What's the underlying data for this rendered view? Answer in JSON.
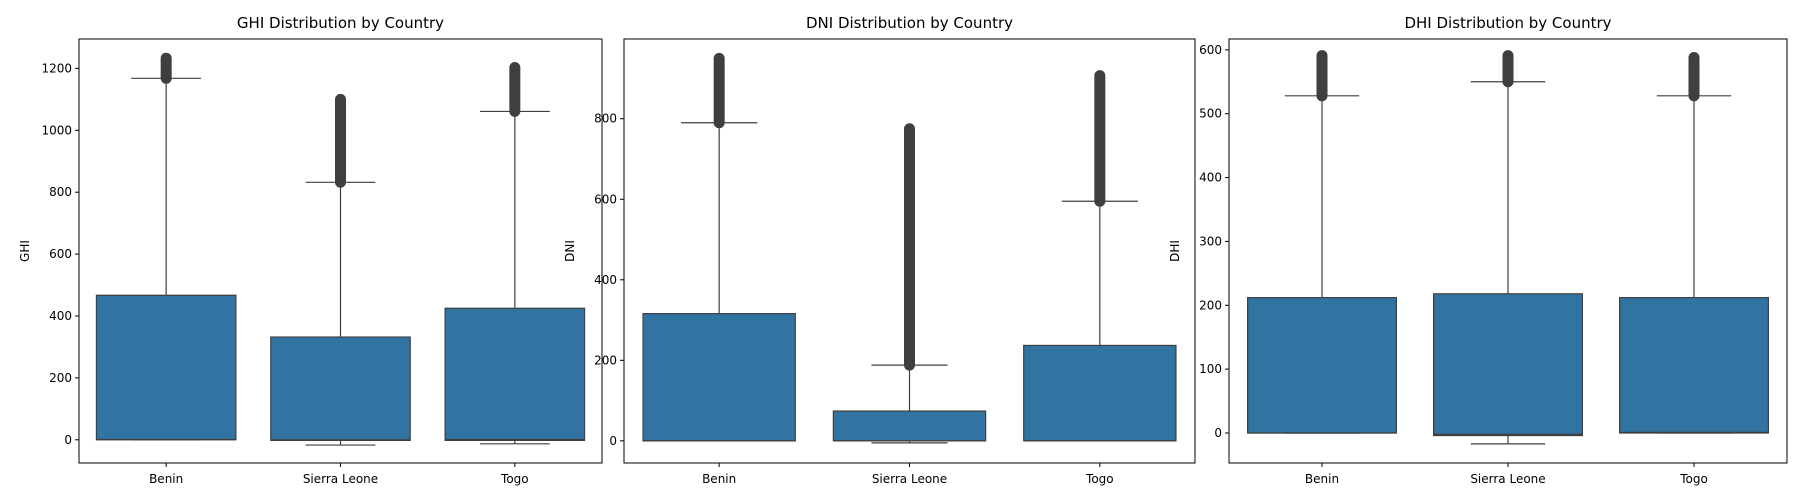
{
  "chart_data": [
    {
      "type": "box",
      "title": "GHI Distribution by Country",
      "xlabel": "",
      "ylabel": "GHI",
      "ylim": [
        -75,
        1295
      ],
      "yticks": [
        0,
        200,
        400,
        600,
        800,
        1000,
        1200
      ],
      "categories": [
        "Benin",
        "Sierra Leone",
        "Togo"
      ],
      "boxes": [
        {
          "category": "Benin",
          "whisker_low": 0,
          "q1": 0,
          "median": 1,
          "q3": 467,
          "whisker_high": 1168,
          "outlier_min": 1168,
          "outlier_max": 1233
        },
        {
          "category": "Sierra Leone",
          "whisker_low": -17,
          "q1": -2,
          "median": 0,
          "q3": 332,
          "whisker_high": 832,
          "outlier_min": 832,
          "outlier_max": 1100
        },
        {
          "category": "Togo",
          "whisker_low": -13,
          "q1": -2,
          "median": 1,
          "q3": 425,
          "whisker_high": 1061,
          "outlier_min": 1061,
          "outlier_max": 1203
        }
      ]
    },
    {
      "type": "box",
      "title": "DNI Distribution by Country",
      "xlabel": "",
      "ylabel": "DNI",
      "ylim": [
        -55,
        998
      ],
      "yticks": [
        0,
        200,
        400,
        600,
        800
      ],
      "categories": [
        "Benin",
        "Sierra Leone",
        "Togo"
      ],
      "boxes": [
        {
          "category": "Benin",
          "whisker_low": 0,
          "q1": 0,
          "median": 0,
          "q3": 316,
          "whisker_high": 790,
          "outlier_min": 790,
          "outlier_max": 950
        },
        {
          "category": "Sierra Leone",
          "whisker_low": -5,
          "q1": 0,
          "median": 0,
          "q3": 74,
          "whisker_high": 188,
          "outlier_min": 188,
          "outlier_max": 775
        },
        {
          "category": "Togo",
          "whisker_low": 0,
          "q1": 0,
          "median": 0,
          "q3": 237,
          "whisker_high": 595,
          "outlier_min": 595,
          "outlier_max": 907
        }
      ]
    },
    {
      "type": "box",
      "title": "DHI Distribution by Country",
      "xlabel": "",
      "ylabel": "DHI",
      "ylim": [
        -47,
        617
      ],
      "yticks": [
        0,
        100,
        200,
        300,
        400,
        500,
        600
      ],
      "categories": [
        "Benin",
        "Sierra Leone",
        "Togo"
      ],
      "boxes": [
        {
          "category": "Benin",
          "whisker_low": 0,
          "q1": 0,
          "median": 0,
          "q3": 212,
          "whisker_high": 528,
          "outlier_min": 528,
          "outlier_max": 591
        },
        {
          "category": "Sierra Leone",
          "whisker_low": -17,
          "q1": -4,
          "median": -2,
          "q3": 218,
          "whisker_high": 550,
          "outlier_min": 550,
          "outlier_max": 591
        },
        {
          "category": "Togo",
          "whisker_low": 0,
          "q1": 0,
          "median": 1,
          "q3": 212,
          "whisker_high": 528,
          "outlier_min": 528,
          "outlier_max": 588
        }
      ]
    }
  ],
  "style": {
    "box_fill": "#3274a1",
    "line_color": "#3f3f3f",
    "outlier_color": "#3f3f3f",
    "axes_color": "#000000"
  }
}
